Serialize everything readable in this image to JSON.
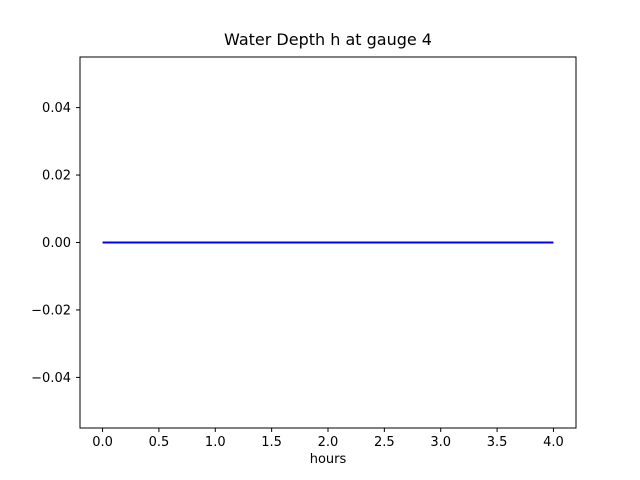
{
  "figure": {
    "background": "#ffffff",
    "frame_color": "#000000"
  },
  "chart_data": {
    "type": "line",
    "title": "Water Depth h at gauge 4",
    "xlabel": "hours",
    "ylabel": "",
    "xlim": [
      -0.2,
      4.2
    ],
    "ylim": [
      -0.055,
      0.055
    ],
    "grid": false,
    "legend": null,
    "x_ticks": {
      "values": [
        0.0,
        0.5,
        1.0,
        1.5,
        2.0,
        2.5,
        3.0,
        3.5,
        4.0
      ],
      "labels": [
        "0.0",
        "0.5",
        "1.0",
        "1.5",
        "2.0",
        "2.5",
        "3.0",
        "3.5",
        "4.0"
      ]
    },
    "y_ticks": {
      "values": [
        -0.04,
        -0.02,
        0.0,
        0.02,
        0.04
      ],
      "labels": [
        "−0.04",
        "−0.02",
        "0.00",
        "0.02",
        "0.04"
      ]
    },
    "series": [
      {
        "name": "water-depth-h",
        "color": "#0000ff",
        "line_width": 2,
        "x": [
          0.0,
          4.0
        ],
        "y": [
          0.0,
          0.0
        ]
      }
    ]
  }
}
